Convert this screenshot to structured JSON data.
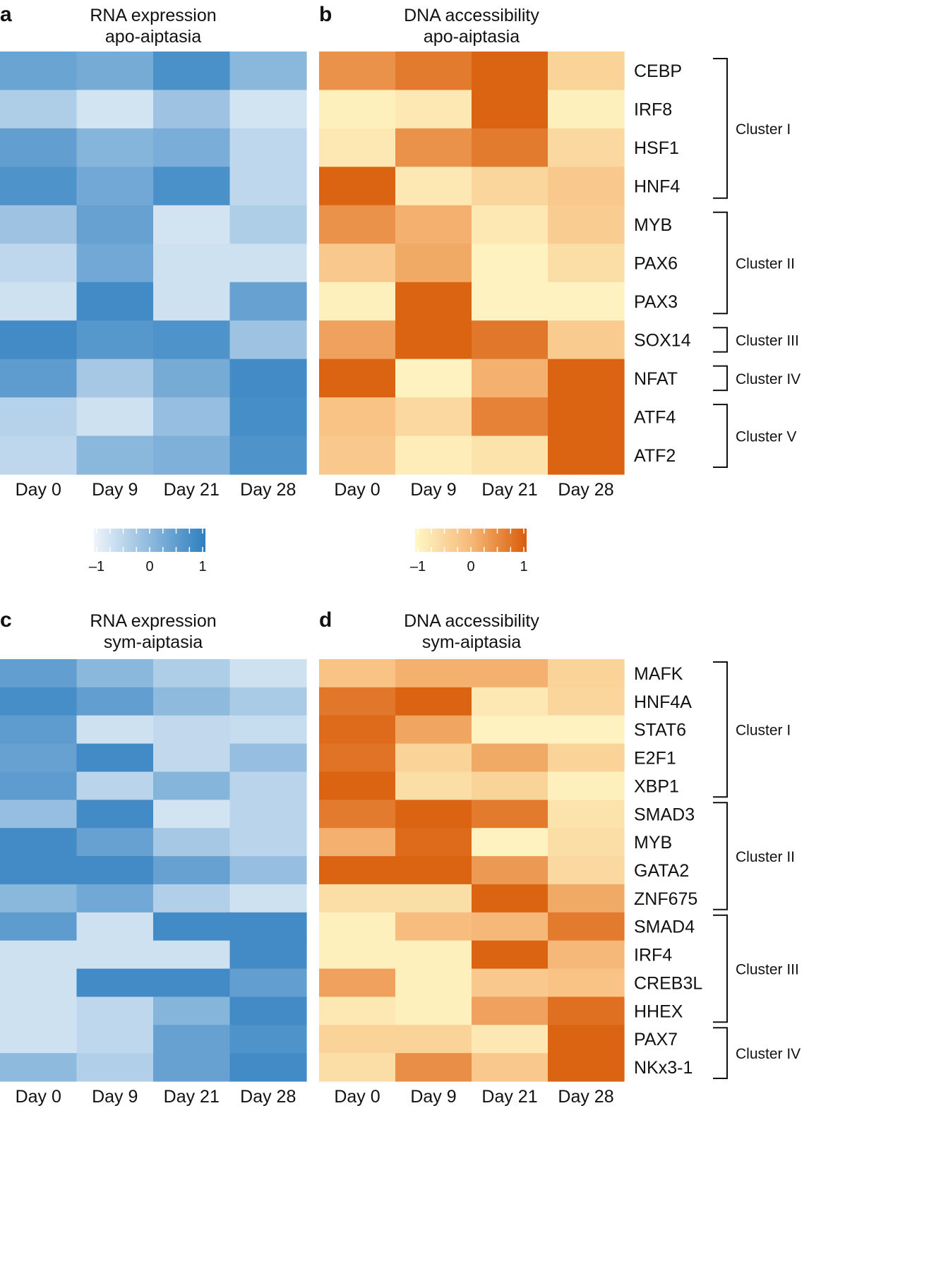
{
  "chart_data": [
    {
      "id": "a",
      "type": "heatmap",
      "letter": "a",
      "title": [
        "RNA expression",
        "apo-aiptasia"
      ],
      "palette": "blue",
      "xlabels": [
        "Day 0",
        "Day 9",
        "Day 21",
        "Day 28"
      ],
      "values": [
        [
          0.45,
          0.3,
          0.85,
          0.05
        ],
        [
          -0.4,
          -0.85,
          -0.2,
          -0.85
        ],
        [
          0.55,
          0.1,
          0.25,
          -0.6
        ],
        [
          0.8,
          0.35,
          0.85,
          -0.6
        ],
        [
          -0.2,
          0.5,
          -0.85,
          -0.4
        ],
        [
          -0.6,
          0.35,
          -0.8,
          -0.8
        ],
        [
          -0.8,
          0.95,
          -0.8,
          0.5
        ],
        [
          0.95,
          0.7,
          0.8,
          -0.2
        ],
        [
          0.6,
          -0.3,
          0.3,
          0.95
        ],
        [
          -0.5,
          -0.8,
          -0.1,
          0.9
        ],
        [
          -0.6,
          0.05,
          0.2,
          0.8
        ]
      ],
      "clim": [
        -1.2,
        1.2
      ]
    },
    {
      "id": "b",
      "type": "heatmap",
      "letter": "b",
      "title": [
        "DNA accessibility",
        "apo-aiptasia"
      ],
      "palette": "orange",
      "xlabels": [
        "Day 0",
        "Day 9",
        "Day 21",
        "Day 28"
      ],
      "rows": [
        "CEBP",
        "IRF8",
        "HSF1",
        "HNF4",
        "MYB",
        "PAX6",
        "PAX3",
        "SOX14",
        "NFAT",
        "ATF4",
        "ATF2"
      ],
      "values": [
        [
          0.5,
          0.8,
          1.1,
          -0.5
        ],
        [
          -1.05,
          -0.9,
          1.1,
          -1.05
        ],
        [
          -0.9,
          0.5,
          0.8,
          -0.6
        ],
        [
          1.1,
          -0.9,
          -0.55,
          -0.3
        ],
        [
          0.5,
          0.1,
          -0.9,
          -0.4
        ],
        [
          -0.3,
          0.2,
          -1.1,
          -0.7
        ],
        [
          -1.05,
          1.1,
          -1.1,
          -1.1
        ],
        [
          0.3,
          1.1,
          0.85,
          -0.35
        ],
        [
          1.1,
          -1.1,
          0.1,
          1.1
        ],
        [
          -0.2,
          -0.6,
          0.7,
          1.1
        ],
        [
          -0.3,
          -1.0,
          -0.8,
          1.1
        ]
      ],
      "clim": [
        -1.2,
        1.2
      ],
      "clusters": [
        {
          "name": "Cluster I",
          "start": 0,
          "end": 3
        },
        {
          "name": "Cluster II",
          "start": 4,
          "end": 6
        },
        {
          "name": "Cluster III",
          "start": 7,
          "end": 7
        },
        {
          "name": "Cluster IV",
          "start": 8,
          "end": 8
        },
        {
          "name": "Cluster V",
          "start": 9,
          "end": 10
        }
      ]
    },
    {
      "id": "c",
      "type": "heatmap",
      "letter": "c",
      "title": [
        "RNA expression",
        "sym-aiptasia"
      ],
      "palette": "blue",
      "xlabels": [
        "Day 0",
        "Day 9",
        "Day 21",
        "Day 28"
      ],
      "values": [
        [
          0.55,
          0.05,
          -0.4,
          -0.8
        ],
        [
          0.9,
          0.55,
          0.0,
          -0.35
        ],
        [
          0.6,
          -0.8,
          -0.65,
          -0.7
        ],
        [
          0.5,
          0.95,
          -0.65,
          -0.1
        ],
        [
          0.6,
          -0.55,
          0.1,
          -0.55
        ],
        [
          -0.1,
          0.95,
          -0.85,
          -0.55
        ],
        [
          0.95,
          0.5,
          -0.3,
          -0.55
        ],
        [
          0.95,
          0.95,
          0.5,
          -0.1
        ],
        [
          0.05,
          0.35,
          -0.45,
          -0.8
        ],
        [
          0.6,
          -0.8,
          0.95,
          0.95
        ],
        [
          -0.8,
          -0.8,
          -0.8,
          0.95
        ],
        [
          -0.8,
          0.95,
          0.95,
          0.55
        ],
        [
          -0.8,
          -0.6,
          0.1,
          0.95
        ],
        [
          -0.8,
          -0.6,
          0.5,
          0.8
        ],
        [
          0.0,
          -0.45,
          0.5,
          0.95
        ]
      ],
      "clim": [
        -1.2,
        1.2
      ]
    },
    {
      "id": "d",
      "type": "heatmap",
      "letter": "d",
      "title": [
        "DNA accessibility",
        "sym-aiptasia"
      ],
      "palette": "orange",
      "xlabels": [
        "Day 0",
        "Day 9",
        "Day 21",
        "Day 28"
      ],
      "rows": [
        "MAFK",
        "HNF4A",
        "STAT6",
        "E2F1",
        "XBP1",
        "SMAD3",
        "MYB",
        "GATA2",
        "ZNF675",
        "SMAD4",
        "IRF4",
        "CREB3L",
        "HHEX",
        "PAX7",
        "NKx3-1"
      ],
      "values": [
        [
          -0.2,
          0.1,
          0.1,
          -0.5
        ],
        [
          0.85,
          1.1,
          -0.9,
          -0.55
        ],
        [
          1.0,
          0.25,
          -1.1,
          -1.1
        ],
        [
          0.9,
          -0.5,
          0.2,
          -0.5
        ],
        [
          1.1,
          -0.7,
          -0.5,
          -1.05
        ],
        [
          0.8,
          1.1,
          0.8,
          -0.8
        ],
        [
          0.1,
          1.0,
          -1.1,
          -0.7
        ],
        [
          1.1,
          1.1,
          0.4,
          -0.6
        ],
        [
          -0.7,
          -0.7,
          1.1,
          0.2
        ],
        [
          -1.05,
          -0.1,
          0.0,
          0.8
        ],
        [
          -1.05,
          -1.05,
          1.1,
          0.0
        ],
        [
          0.3,
          -1.05,
          -0.3,
          -0.2
        ],
        [
          -0.9,
          -1.05,
          0.3,
          0.95
        ],
        [
          -0.5,
          -0.5,
          -0.9,
          1.1
        ],
        [
          -0.7,
          0.55,
          -0.3,
          1.1
        ]
      ],
      "clim": [
        -1.2,
        1.2
      ],
      "clusters": [
        {
          "name": "Cluster I",
          "start": 0,
          "end": 4
        },
        {
          "name": "Cluster II",
          "start": 5,
          "end": 8
        },
        {
          "name": "Cluster III",
          "start": 9,
          "end": 12
        },
        {
          "name": "Cluster IV",
          "start": 13,
          "end": 14
        }
      ]
    }
  ],
  "colorbars": [
    {
      "palette": "blue",
      "range": [
        -1,
        1
      ],
      "ticks": [
        "–1",
        "0",
        "1"
      ]
    },
    {
      "palette": "orange",
      "range": [
        -1,
        1
      ],
      "ticks": [
        "–1",
        "0",
        "1"
      ]
    }
  ],
  "colors": {
    "blue_low": "#eef4fb",
    "blue_high": "#2e7fc0",
    "orange_low": "#fff8c6",
    "orange_mid": "#f6b878",
    "orange_high": "#d95c0a"
  }
}
